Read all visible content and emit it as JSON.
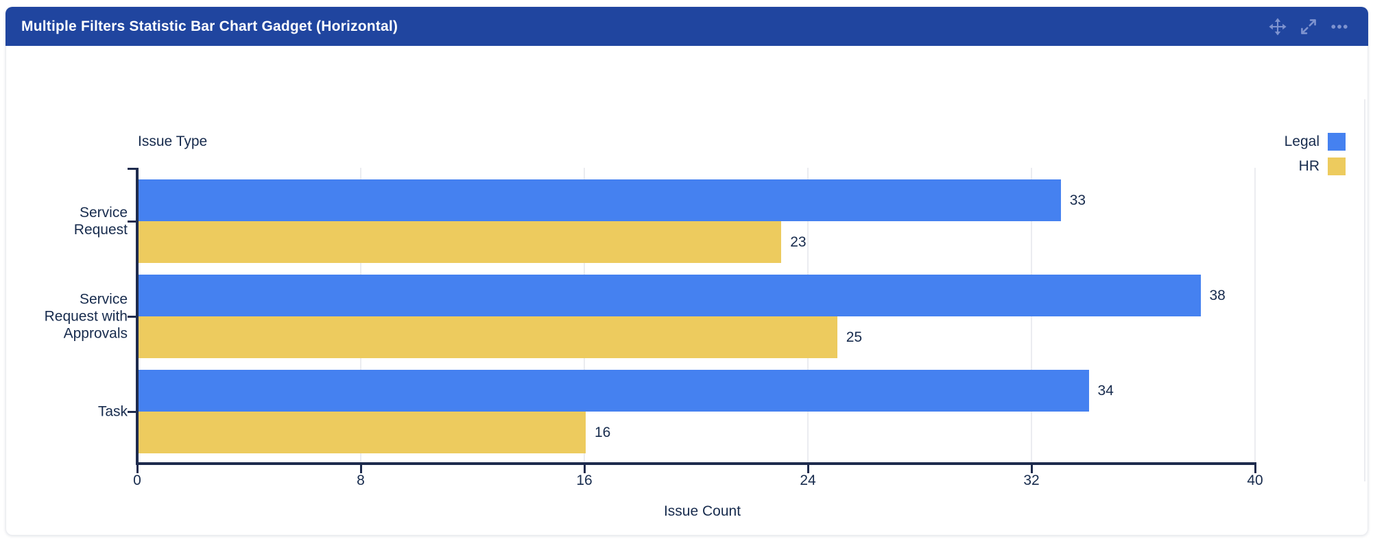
{
  "gadget": {
    "title": "Multiple Filters Statistic Bar Chart Gadget (Horizontal)",
    "header_color": "#20459F",
    "toolbar_icons": [
      {
        "name": "move-icon"
      },
      {
        "name": "expand-icon"
      },
      {
        "name": "more-options-icon"
      }
    ]
  },
  "chart_data": {
    "type": "bar",
    "orientation": "horizontal",
    "axis_title_y": "Issue Type",
    "axis_title_x": "Issue Count",
    "categories": [
      "Service Request",
      "Service Request with Approvals",
      "Task"
    ],
    "series": [
      {
        "name": "Legal",
        "color": "#4581F0",
        "values": [
          33,
          38,
          34
        ]
      },
      {
        "name": "HR",
        "color": "#EDCB5E",
        "values": [
          23,
          25,
          16
        ]
      }
    ],
    "xlim": [
      0,
      40
    ],
    "x_ticks": [
      0,
      8,
      16,
      24,
      32,
      40
    ],
    "grid": true,
    "value_labels": true,
    "legend_position": "top-right",
    "colors": {
      "text": "#172B4D",
      "axis": "#1E2B4D",
      "gridline": "#EBECF0"
    }
  }
}
